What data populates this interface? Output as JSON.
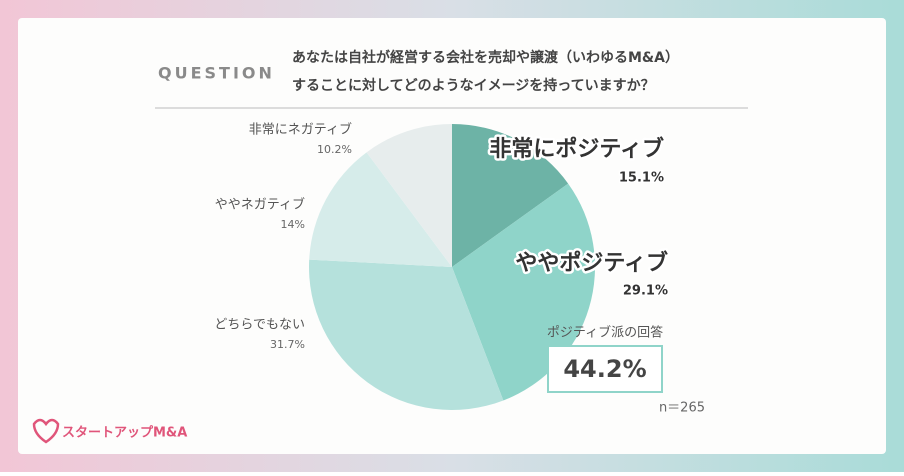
{
  "chart_data": {
    "type": "pie",
    "kicker": "QUESTION",
    "title_lines": [
      "あなたは自社が経営する会社を売却や譲渡（いわゆるM&A）",
      "することに対してどのようなイメージを持っていますか？"
    ],
    "categories": [
      "非常にポジティブ",
      "ややポジティブ",
      "どちらでもない",
      "ややネガティブ",
      "非常にネガティブ"
    ],
    "values": [
      15.1,
      29.1,
      31.7,
      14,
      10.2
    ],
    "value_labels": [
      "15.1%",
      "29.1%",
      "31.7%",
      "14%",
      "10.2%"
    ],
    "colors": [
      "#6db3a6",
      "#8fd4c9",
      "#b5e1dc",
      "#d6ecea",
      "#e7eded"
    ],
    "summary_label": "ポジティブ派の回答",
    "summary_value": "44.2%",
    "sample_size": "n＝265",
    "brand": "スタートアップM&A"
  }
}
